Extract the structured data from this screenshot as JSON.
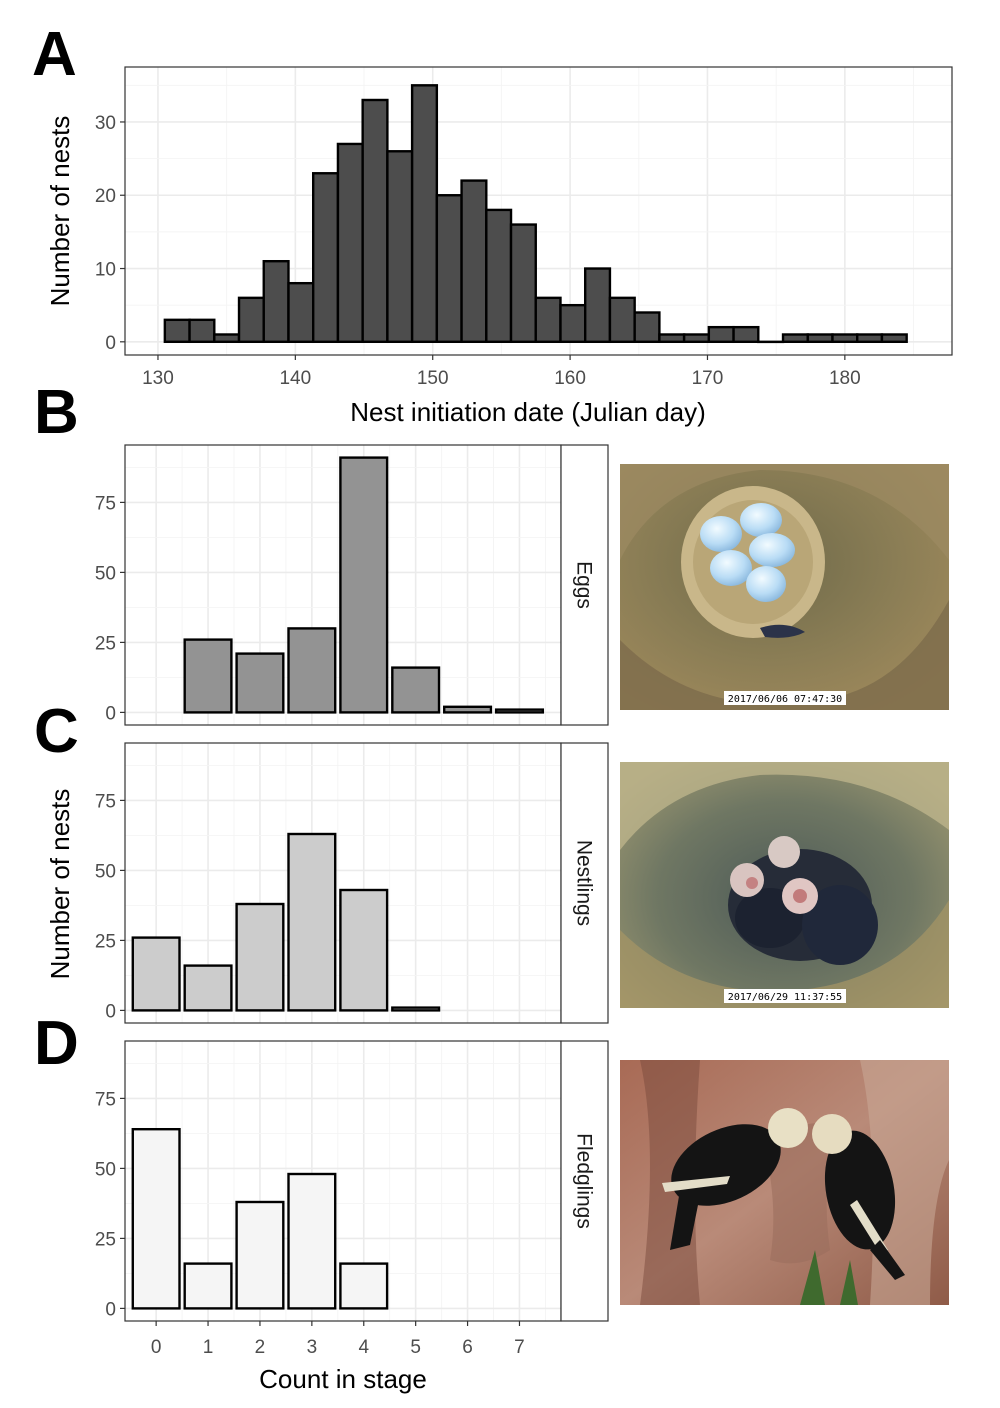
{
  "panel_letters": [
    "A",
    "B",
    "C",
    "D"
  ],
  "chart_data": [
    {
      "id": "A",
      "type": "bar",
      "xlabel": "Nest initiation date (Julian day)",
      "ylabel": "Number of nests",
      "bin_width": 1.8,
      "bins_start": [
        130.5,
        132.3,
        134.1,
        135.9,
        137.7,
        139.5,
        141.3,
        143.1,
        144.9,
        146.7,
        148.5,
        150.3,
        152.1,
        153.9,
        155.7,
        157.5,
        159.3,
        161.1,
        162.9,
        164.7,
        166.5,
        168.3,
        170.1,
        171.9,
        173.7,
        175.5,
        177.3,
        179.1,
        180.9,
        182.7,
        184.5
      ],
      "values": [
        3,
        3,
        1,
        6,
        11,
        8,
        23,
        27,
        33,
        26,
        35,
        20,
        22,
        18,
        16,
        6,
        5,
        10,
        6,
        4,
        1,
        1,
        2,
        2,
        0,
        1,
        1,
        1,
        1,
        1
      ],
      "xlim": [
        127.6,
        187.8
      ],
      "ylim": [
        -1.8,
        37.5
      ],
      "xticks": [
        130,
        140,
        150,
        160,
        170,
        180
      ],
      "yticks": [
        0,
        10,
        20,
        30
      ],
      "grid": true,
      "bar_color": "#4d4d4d"
    },
    {
      "id": "B",
      "type": "bar",
      "facet": "Eggs",
      "categories": [
        0,
        1,
        2,
        3,
        4,
        5,
        6,
        7
      ],
      "values": [
        0,
        26,
        21,
        30,
        91,
        16,
        2,
        1
      ],
      "ylim": [
        -4.5,
        95.5
      ],
      "yticks": [
        0,
        25,
        50,
        75
      ],
      "grid": true,
      "bar_color": "#939393"
    },
    {
      "id": "C",
      "type": "bar",
      "facet": "Nestlings",
      "categories": [
        0,
        1,
        2,
        3,
        4,
        5,
        6,
        7
      ],
      "values": [
        26,
        16,
        38,
        63,
        43,
        1,
        0,
        0
      ],
      "ylim": [
        -4.5,
        95.5
      ],
      "yticks": [
        0,
        25,
        50,
        75
      ],
      "grid": true,
      "bar_color": "#cccccc"
    },
    {
      "id": "D",
      "type": "bar",
      "facet": "Fledglings",
      "categories": [
        0,
        1,
        2,
        3,
        4,
        5,
        6,
        7
      ],
      "values": [
        64,
        16,
        38,
        48,
        16,
        0,
        0,
        0
      ],
      "ylim": [
        -4.5,
        95.5
      ],
      "yticks": [
        0,
        25,
        50,
        75
      ],
      "xticks": [
        0,
        1,
        2,
        3,
        4,
        5,
        6,
        7
      ],
      "grid": true,
      "bar_color": "#f5f5f5"
    }
  ],
  "shared_labels": {
    "bcd_ylabel": "Number of nests",
    "bcd_xlabel": "Count in stage"
  },
  "photos": [
    {
      "subject": "eggs-in-nest-cavity",
      "timestamp": "2017/06/06 07:47:30"
    },
    {
      "subject": "nestlings-in-nest-cavity",
      "timestamp": "2017/06/29 11:37:55"
    },
    {
      "subject": "fledglings-on-tree-bark",
      "timestamp": ""
    }
  ]
}
